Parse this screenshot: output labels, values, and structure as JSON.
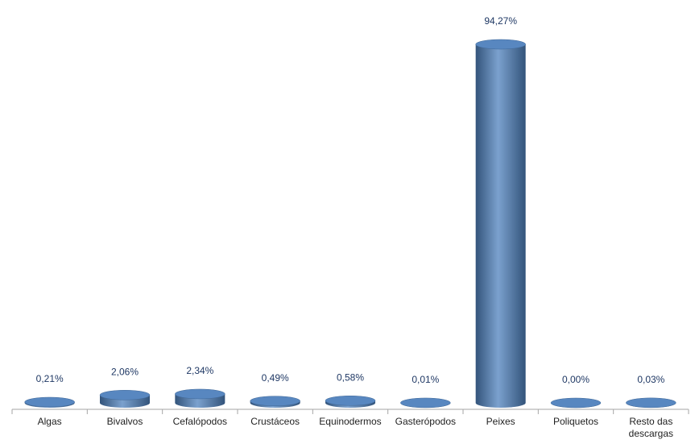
{
  "chart_data": {
    "type": "bar",
    "style": "3d-cylinder",
    "categories": [
      "Algas",
      "Bivalvos",
      "Cefalópodos",
      "Crustáceos",
      "Equinodermos",
      "Gasterópodos",
      "Peixes",
      "Poliquetos",
      "Resto das descargas"
    ],
    "values": [
      0.21,
      2.06,
      2.34,
      0.49,
      0.58,
      0.01,
      94.27,
      0.0,
      0.03
    ],
    "value_labels": [
      "0,21%",
      "2,06%",
      "2,34%",
      "0,49%",
      "0,58%",
      "0,01%",
      "94,27%",
      "0,00%",
      "0,03%"
    ],
    "color": "#4f81bd"
  }
}
